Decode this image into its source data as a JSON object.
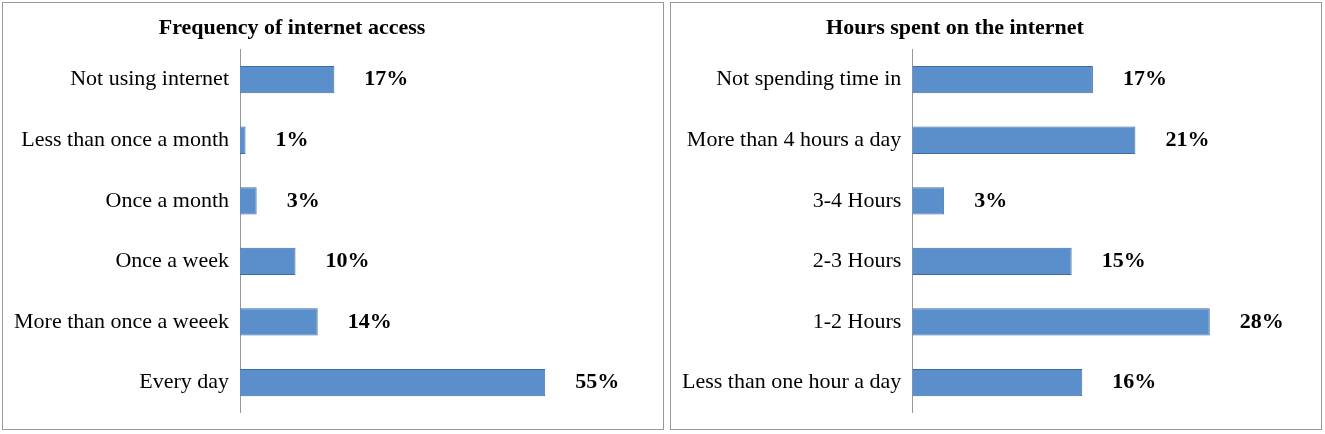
{
  "chart_data": [
    {
      "type": "bar",
      "orientation": "horizontal",
      "title": "Frequency of internet access",
      "categories": [
        "Not using internet",
        "Less than once a month",
        "Once a month",
        "Once a week",
        "More than once a weeek",
        "Every day"
      ],
      "values": [
        17,
        1,
        3,
        10,
        14,
        55
      ],
      "color": "#5b8fcb",
      "value_labels": [
        "17%",
        "1%",
        "3%",
        "10%",
        "14%",
        "55%"
      ]
    },
    {
      "type": "bar",
      "orientation": "horizontal",
      "title": "Hours spent on the internet",
      "categories": [
        "Not spending time in",
        "More than 4 hours a day",
        "3-4 Hours",
        "2-3 Hours",
        "1-2 Hours",
        "Less than one hour a day"
      ],
      "values": [
        17,
        21,
        3,
        15,
        28,
        16
      ],
      "color": "#5b8fcb",
      "value_labels": [
        "17%",
        "21%",
        "3%",
        "15%",
        "28%",
        "16%"
      ]
    }
  ]
}
